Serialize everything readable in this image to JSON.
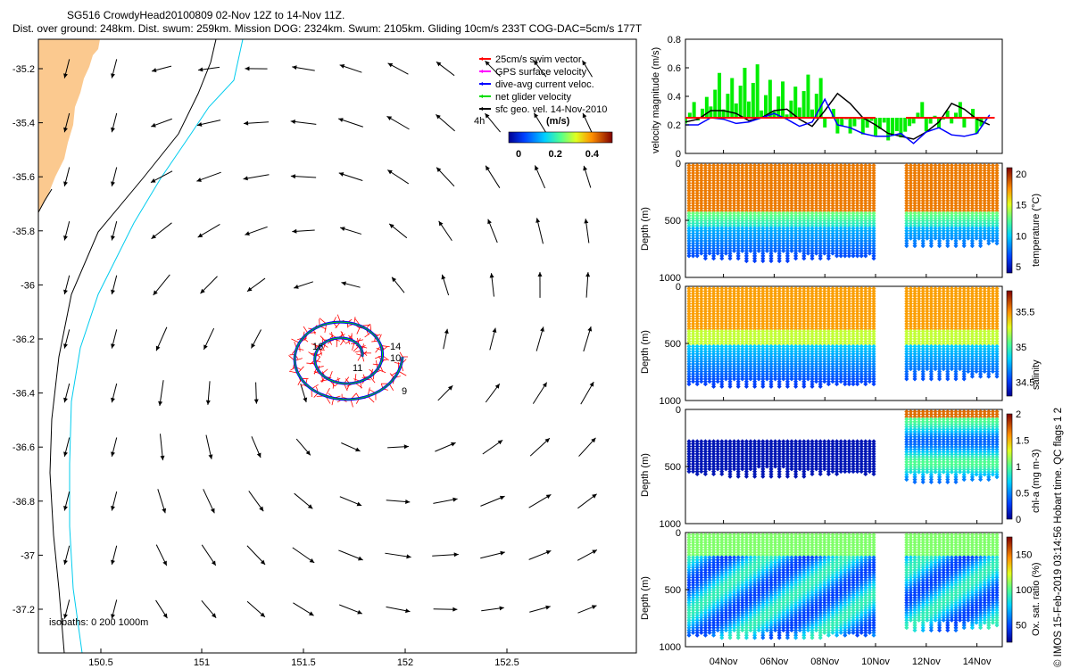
{
  "header": {
    "title": "SG516 CrowdyHead20100809 02-Nov 12Z to 14-Nov 11Z.",
    "subtitle": "Dist. over ground: 248km. Dist. swum: 259km. Mission DOG: 2324km. Swum: 2105km. Gliding 10cm/s 233T COG-DAC=5cm/s 177T"
  },
  "side_label": "© IMOS 15-Feb-2019 03:14:56 Hobart time. QC flags 1  2",
  "map": {
    "x_ticks": [
      "150.5",
      "151",
      "151.5",
      "152",
      "152.5"
    ],
    "y_ticks": [
      "-35.2",
      "-35.4",
      "-35.6",
      "-35.8",
      "-36",
      "-36.2",
      "-36.4",
      "-36.6",
      "-36.8",
      "-37",
      "-37.2"
    ],
    "legend": [
      {
        "label": "25cm/s swim vector",
        "color": "#ff0000"
      },
      {
        "label": "GPS surface velocity",
        "color": "#ff00ff"
      },
      {
        "label": "dive-avg current veloc.",
        "color": "#0000ff"
      },
      {
        "label": "net glider velocity",
        "color": "#00dd00"
      },
      {
        "label": "sfc geo. vel. 14-Nov-2010",
        "color": "#000000"
      }
    ],
    "legend_aux": "4h",
    "colorbar_title": "(m/s)",
    "colorbar_ticks": [
      "0",
      "0.2",
      "0.4"
    ],
    "isobath_label": "isobaths: 0   200   1000m",
    "day_labels": [
      "16",
      "14",
      "11",
      "10",
      "9"
    ]
  },
  "chart_data": [
    {
      "type": "line",
      "title": "",
      "ylabel": "velocity magnitude (m/s)",
      "ylim": [
        0,
        0.8
      ],
      "y_ticks": [
        "0",
        "0.2",
        "0.4",
        "0.6",
        "0.8"
      ],
      "x": [
        2.5,
        3,
        3.5,
        4,
        4.5,
        5,
        5.5,
        6,
        6.5,
        7,
        7.5,
        8,
        8.5,
        9,
        9.5,
        10,
        10.5,
        11,
        11.5,
        12,
        12.5,
        13,
        13.5,
        14,
        14.5
      ],
      "series": [
        {
          "color": "#000000",
          "values": [
            0.22,
            0.24,
            0.3,
            0.3,
            0.28,
            0.23,
            0.25,
            0.3,
            0.31,
            0.24,
            0.19,
            0.3,
            0.42,
            0.35,
            0.25,
            0.2,
            0.14,
            0.12,
            0.1,
            0.15,
            0.22,
            0.35,
            0.31,
            0.24,
            0.2
          ]
        },
        {
          "color": "#0000ff",
          "values": [
            0.2,
            0.2,
            0.25,
            0.24,
            0.21,
            0.22,
            0.25,
            0.28,
            0.24,
            0.19,
            0.22,
            0.38,
            0.2,
            0.18,
            0.14,
            0.12,
            0.12,
            0.14,
            0.07,
            0.15,
            0.18,
            0.13,
            0.12,
            0.14,
            0.27
          ]
        },
        {
          "color": "#00dd00",
          "values": [
            0.3,
            0.33,
            0.47,
            0.44,
            0.5,
            0.52,
            0.43,
            0.42,
            0.39,
            0.46,
            0.44,
            0.26,
            0.2,
            0.2,
            0.19,
            0.18,
            0.13,
            0.16,
            0.3,
            0.22,
            0.25,
            0.3,
            0.26,
            0.2,
            0.21
          ]
        },
        {
          "color": "#ff0000",
          "values": [
            0.25,
            0.25,
            0.25,
            0.25,
            0.25,
            0.25,
            0.25,
            0.25,
            0.25,
            0.25,
            0.25,
            0.25,
            0.25,
            0.25,
            0.25,
            0.25,
            0.25,
            0.25,
            0.25,
            0.25,
            0.25,
            0.25,
            0.25,
            0.25,
            0.25
          ]
        }
      ]
    },
    {
      "type": "scatter",
      "ylabel": "Depth (m)",
      "ylim": [
        1000,
        0
      ],
      "y_ticks": [
        "0",
        "500",
        "1000"
      ],
      "colorbar_label": "temperature (°C)",
      "colorbar_ticks": [
        "5",
        "10",
        "15",
        "20"
      ],
      "colorbar_range": [
        4,
        21
      ]
    },
    {
      "type": "scatter",
      "ylabel": "Depth (m)",
      "ylim": [
        1000,
        0
      ],
      "y_ticks": [
        "0",
        "500",
        "1000"
      ],
      "colorbar_label": "salinity",
      "colorbar_ticks": [
        "34.5",
        "35",
        "35.5"
      ],
      "colorbar_range": [
        34.3,
        35.8
      ]
    },
    {
      "type": "scatter",
      "ylabel": "Depth (m)",
      "ylim": [
        1000,
        0
      ],
      "y_ticks": [
        "0",
        "500",
        "1000"
      ],
      "colorbar_label": "chl-a (mg m-3)",
      "colorbar_ticks": [
        "0",
        "0.5",
        "1",
        "1.5",
        "2"
      ],
      "colorbar_range": [
        0,
        2
      ]
    },
    {
      "type": "scatter",
      "ylabel": "Depth (m)",
      "ylim": [
        1000,
        0
      ],
      "y_ticks": [
        "0",
        "500",
        "1000"
      ],
      "colorbar_label": "Ox. sat. ratio (%)",
      "colorbar_ticks": [
        "50",
        "100",
        "150"
      ],
      "colorbar_range": [
        25,
        175
      ]
    }
  ],
  "time_axis": {
    "ticks": [
      "04Nov",
      "06Nov",
      "08Nov",
      "10Nov",
      "12Nov",
      "14Nov"
    ]
  }
}
